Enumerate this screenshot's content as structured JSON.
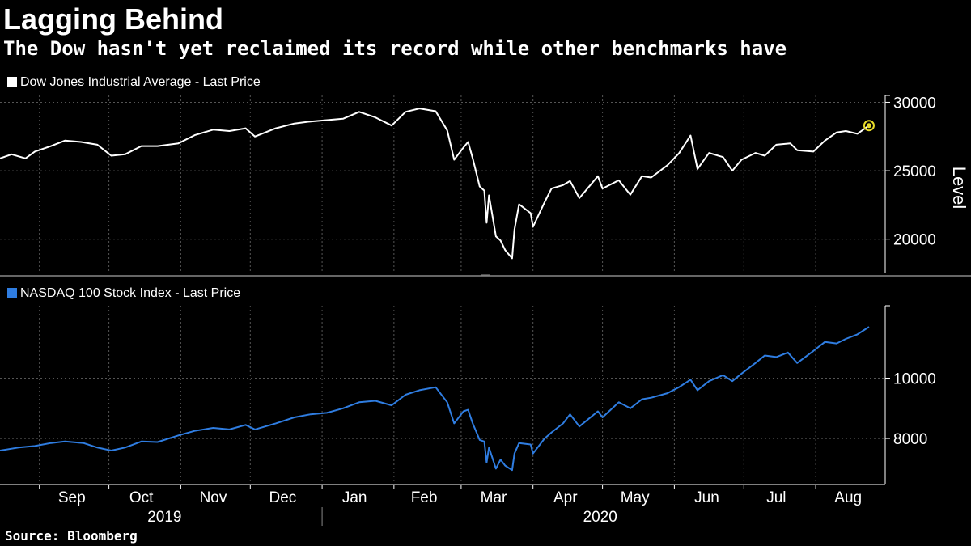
{
  "header": {
    "title": "Lagging Behind",
    "subtitle": "The Dow hasn't yet reclaimed its record while other benchmarks have"
  },
  "footer": {
    "source": "Source: Bloomberg"
  },
  "colors": {
    "dow": "#ffffff",
    "nasdaq": "#2f7de1",
    "marker": "#e8dc2a",
    "grid": "#555555",
    "axis": "#ffffff"
  },
  "chart_data": [
    {
      "type": "line",
      "legend": "Dow Jones Industrial Average - Last Price",
      "ylabel": "Level",
      "yticks": [
        30000,
        25000,
        20000
      ],
      "ylim": [
        17500,
        30500
      ],
      "x_range": [
        "2019-08-15",
        "2020-08-31"
      ],
      "highlight_last_point": true,
      "series": [
        {
          "name": "Dow Jones Industrial Average - Last Price",
          "points": [
            [
              "2019-08-15",
              25900
            ],
            [
              "2019-08-20",
              26200
            ],
            [
              "2019-08-26",
              25900
            ],
            [
              "2019-08-30",
              26400
            ],
            [
              "2019-09-06",
              26800
            ],
            [
              "2019-09-12",
              27200
            ],
            [
              "2019-09-19",
              27100
            ],
            [
              "2019-09-26",
              26900
            ],
            [
              "2019-10-02",
              26100
            ],
            [
              "2019-10-08",
              26200
            ],
            [
              "2019-10-15",
              26800
            ],
            [
              "2019-10-22",
              26800
            ],
            [
              "2019-10-31",
              27000
            ],
            [
              "2019-11-07",
              27600
            ],
            [
              "2019-11-15",
              28000
            ],
            [
              "2019-11-22",
              27900
            ],
            [
              "2019-11-29",
              28100
            ],
            [
              "2019-12-03",
              27500
            ],
            [
              "2019-12-12",
              28100
            ],
            [
              "2019-12-20",
              28450
            ],
            [
              "2019-12-27",
              28600
            ],
            [
              "2020-01-03",
              28700
            ],
            [
              "2020-01-10",
              28800
            ],
            [
              "2020-01-17",
              29300
            ],
            [
              "2020-01-24",
              28900
            ],
            [
              "2020-01-31",
              28300
            ],
            [
              "2020-02-06",
              29300
            ],
            [
              "2020-02-12",
              29550
            ],
            [
              "2020-02-19",
              29350
            ],
            [
              "2020-02-24",
              27950
            ],
            [
              "2020-02-27",
              25800
            ],
            [
              "2020-03-02",
              26700
            ],
            [
              "2020-03-04",
              27100
            ],
            [
              "2020-03-06",
              25900
            ],
            [
              "2020-03-09",
              23850
            ],
            [
              "2020-03-11",
              23550
            ],
            [
              "2020-03-12",
              21200
            ],
            [
              "2020-03-13",
              23200
            ],
            [
              "2020-03-16",
              20200
            ],
            [
              "2020-03-18",
              19900
            ],
            [
              "2020-03-20",
              19200
            ],
            [
              "2020-03-23",
              18600
            ],
            [
              "2020-03-24",
              20700
            ],
            [
              "2020-03-26",
              22550
            ],
            [
              "2020-03-31",
              21900
            ],
            [
              "2020-04-01",
              20900
            ],
            [
              "2020-04-06",
              22700
            ],
            [
              "2020-04-09",
              23700
            ],
            [
              "2020-04-14",
              23950
            ],
            [
              "2020-04-17",
              24250
            ],
            [
              "2020-04-21",
              23000
            ],
            [
              "2020-04-29",
              24600
            ],
            [
              "2020-05-01",
              23700
            ],
            [
              "2020-05-08",
              24300
            ],
            [
              "2020-05-13",
              23250
            ],
            [
              "2020-05-18",
              24600
            ],
            [
              "2020-05-22",
              24500
            ],
            [
              "2020-05-29",
              25400
            ],
            [
              "2020-06-03",
              26270
            ],
            [
              "2020-06-08",
              27570
            ],
            [
              "2020-06-11",
              25130
            ],
            [
              "2020-06-16",
              26300
            ],
            [
              "2020-06-22",
              26000
            ],
            [
              "2020-06-26",
              25000
            ],
            [
              "2020-06-30",
              25800
            ],
            [
              "2020-07-06",
              26300
            ],
            [
              "2020-07-10",
              26100
            ],
            [
              "2020-07-15",
              26900
            ],
            [
              "2020-07-21",
              27000
            ],
            [
              "2020-07-24",
              26500
            ],
            [
              "2020-07-31",
              26400
            ],
            [
              "2020-08-05",
              27200
            ],
            [
              "2020-08-10",
              27800
            ],
            [
              "2020-08-14",
              27900
            ],
            [
              "2020-08-19",
              27700
            ],
            [
              "2020-08-24",
              28300
            ]
          ]
        }
      ]
    },
    {
      "type": "line",
      "legend": "NASDAQ 100 Stock Index - Last Price",
      "yticks": [
        10000,
        8000
      ],
      "ylim": [
        6500,
        12400
      ],
      "x_range": [
        "2019-08-15",
        "2020-08-31"
      ],
      "series": [
        {
          "name": "NASDAQ 100 Stock Index - Last Price",
          "points": [
            [
              "2019-08-15",
              7600
            ],
            [
              "2019-08-23",
              7700
            ],
            [
              "2019-08-30",
              7750
            ],
            [
              "2019-09-06",
              7850
            ],
            [
              "2019-09-12",
              7900
            ],
            [
              "2019-09-20",
              7850
            ],
            [
              "2019-09-26",
              7700
            ],
            [
              "2019-10-02",
              7600
            ],
            [
              "2019-10-08",
              7700
            ],
            [
              "2019-10-15",
              7900
            ],
            [
              "2019-10-22",
              7880
            ],
            [
              "2019-10-31",
              8100
            ],
            [
              "2019-11-07",
              8250
            ],
            [
              "2019-11-15",
              8350
            ],
            [
              "2019-11-22",
              8300
            ],
            [
              "2019-11-29",
              8450
            ],
            [
              "2019-12-03",
              8300
            ],
            [
              "2019-12-12",
              8500
            ],
            [
              "2019-12-20",
              8700
            ],
            [
              "2019-12-27",
              8800
            ],
            [
              "2020-01-03",
              8850
            ],
            [
              "2020-01-10",
              9000
            ],
            [
              "2020-01-17",
              9200
            ],
            [
              "2020-01-24",
              9250
            ],
            [
              "2020-01-31",
              9100
            ],
            [
              "2020-02-06",
              9450
            ],
            [
              "2020-02-12",
              9600
            ],
            [
              "2020-02-19",
              9700
            ],
            [
              "2020-02-24",
              9200
            ],
            [
              "2020-02-27",
              8500
            ],
            [
              "2020-03-02",
              8900
            ],
            [
              "2020-03-04",
              8950
            ],
            [
              "2020-03-06",
              8500
            ],
            [
              "2020-03-09",
              7950
            ],
            [
              "2020-03-11",
              7900
            ],
            [
              "2020-03-12",
              7200
            ],
            [
              "2020-03-13",
              7700
            ],
            [
              "2020-03-16",
              7000
            ],
            [
              "2020-03-18",
              7300
            ],
            [
              "2020-03-20",
              7100
            ],
            [
              "2020-03-23",
              6950
            ],
            [
              "2020-03-24",
              7500
            ],
            [
              "2020-03-26",
              7850
            ],
            [
              "2020-03-31",
              7800
            ],
            [
              "2020-04-01",
              7500
            ],
            [
              "2020-04-06",
              8000
            ],
            [
              "2020-04-09",
              8200
            ],
            [
              "2020-04-14",
              8500
            ],
            [
              "2020-04-17",
              8800
            ],
            [
              "2020-04-21",
              8400
            ],
            [
              "2020-04-29",
              8900
            ],
            [
              "2020-05-01",
              8700
            ],
            [
              "2020-05-08",
              9200
            ],
            [
              "2020-05-13",
              9000
            ],
            [
              "2020-05-18",
              9300
            ],
            [
              "2020-05-22",
              9350
            ],
            [
              "2020-05-29",
              9500
            ],
            [
              "2020-06-03",
              9700
            ],
            [
              "2020-06-08",
              9950
            ],
            [
              "2020-06-11",
              9600
            ],
            [
              "2020-06-16",
              9900
            ],
            [
              "2020-06-22",
              10100
            ],
            [
              "2020-06-26",
              9900
            ],
            [
              "2020-06-30",
              10150
            ],
            [
              "2020-07-06",
              10500
            ],
            [
              "2020-07-10",
              10750
            ],
            [
              "2020-07-15",
              10700
            ],
            [
              "2020-07-20",
              10850
            ],
            [
              "2020-07-24",
              10500
            ],
            [
              "2020-07-31",
              10900
            ],
            [
              "2020-08-05",
              11200
            ],
            [
              "2020-08-10",
              11150
            ],
            [
              "2020-08-14",
              11300
            ],
            [
              "2020-08-19",
              11450
            ],
            [
              "2020-08-24",
              11700
            ]
          ]
        }
      ]
    }
  ],
  "x_axis": {
    "months": [
      {
        "label": "Sep",
        "date": "2019-09-15"
      },
      {
        "label": "Oct",
        "date": "2019-10-15"
      },
      {
        "label": "Nov",
        "date": "2019-11-15"
      },
      {
        "label": "Dec",
        "date": "2019-12-15"
      },
      {
        "label": "Jan",
        "date": "2020-01-15"
      },
      {
        "label": "Feb",
        "date": "2020-02-14"
      },
      {
        "label": "Mar",
        "date": "2020-03-15"
      },
      {
        "label": "Apr",
        "date": "2020-04-15"
      },
      {
        "label": "May",
        "date": "2020-05-15"
      },
      {
        "label": "Jun",
        "date": "2020-06-15"
      },
      {
        "label": "Jul",
        "date": "2020-07-15"
      },
      {
        "label": "Aug",
        "date": "2020-08-15"
      }
    ],
    "gridlines": [
      "2019-09-01",
      "2019-10-01",
      "2019-11-01",
      "2019-12-01",
      "2020-01-01",
      "2020-02-01",
      "2020-03-01",
      "2020-04-01",
      "2020-05-01",
      "2020-06-01",
      "2020-07-01",
      "2020-08-01"
    ],
    "years": [
      {
        "label": "2019",
        "date": "2019-10-25"
      },
      {
        "label": "2020",
        "date": "2020-04-30"
      }
    ],
    "year_divider": "2020-01-01"
  }
}
